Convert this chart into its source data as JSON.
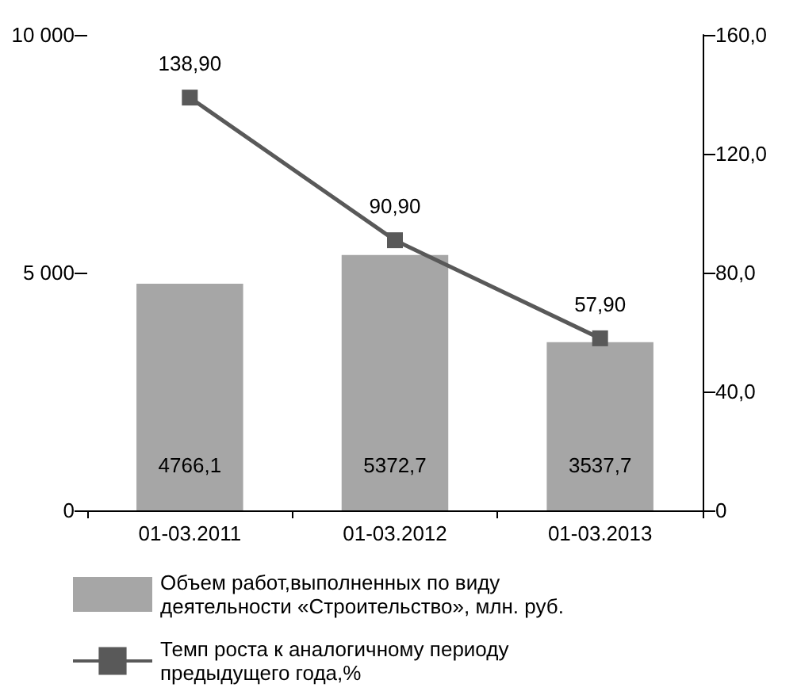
{
  "chart_data": {
    "type": "bar",
    "categories": [
      "01-03.2011",
      "01-03.2012",
      "01-03.2013"
    ],
    "series": [
      {
        "name": "Объем работ,выполненных по виду\nдеятельности «Строительство», млн. руб.",
        "color": "#a6a6a6",
        "values": [
          4766.1,
          5372.7,
          3537.7
        ],
        "value_labels": [
          "4766,1",
          "5372,7",
          "3537,7"
        ]
      },
      {
        "type": "line",
        "axis": "y2",
        "name": "Темп роста к аналогичному периоду\nпредыдущего года,%",
        "color": "#595959",
        "values": [
          138.9,
          90.9,
          57.9
        ],
        "value_labels": [
          "138,90",
          "90,90",
          "57,90"
        ]
      }
    ],
    "ylim": [
      0,
      10000
    ],
    "yticks": [
      {
        "value": 0,
        "label": "0"
      },
      {
        "value": 5000,
        "label": "5 000"
      },
      {
        "value": 10000,
        "label": "10 000"
      }
    ],
    "y2lim": [
      0,
      160
    ],
    "y2ticks": [
      {
        "value": 0,
        "label": "0"
      },
      {
        "value": 40,
        "label": "40,0"
      },
      {
        "value": 80,
        "label": "80,0"
      },
      {
        "value": 120,
        "label": "120,0"
      },
      {
        "value": 160,
        "label": "160,0"
      }
    ],
    "grid": false,
    "legend": "bottom",
    "marker": "square",
    "line_style": "solid"
  }
}
